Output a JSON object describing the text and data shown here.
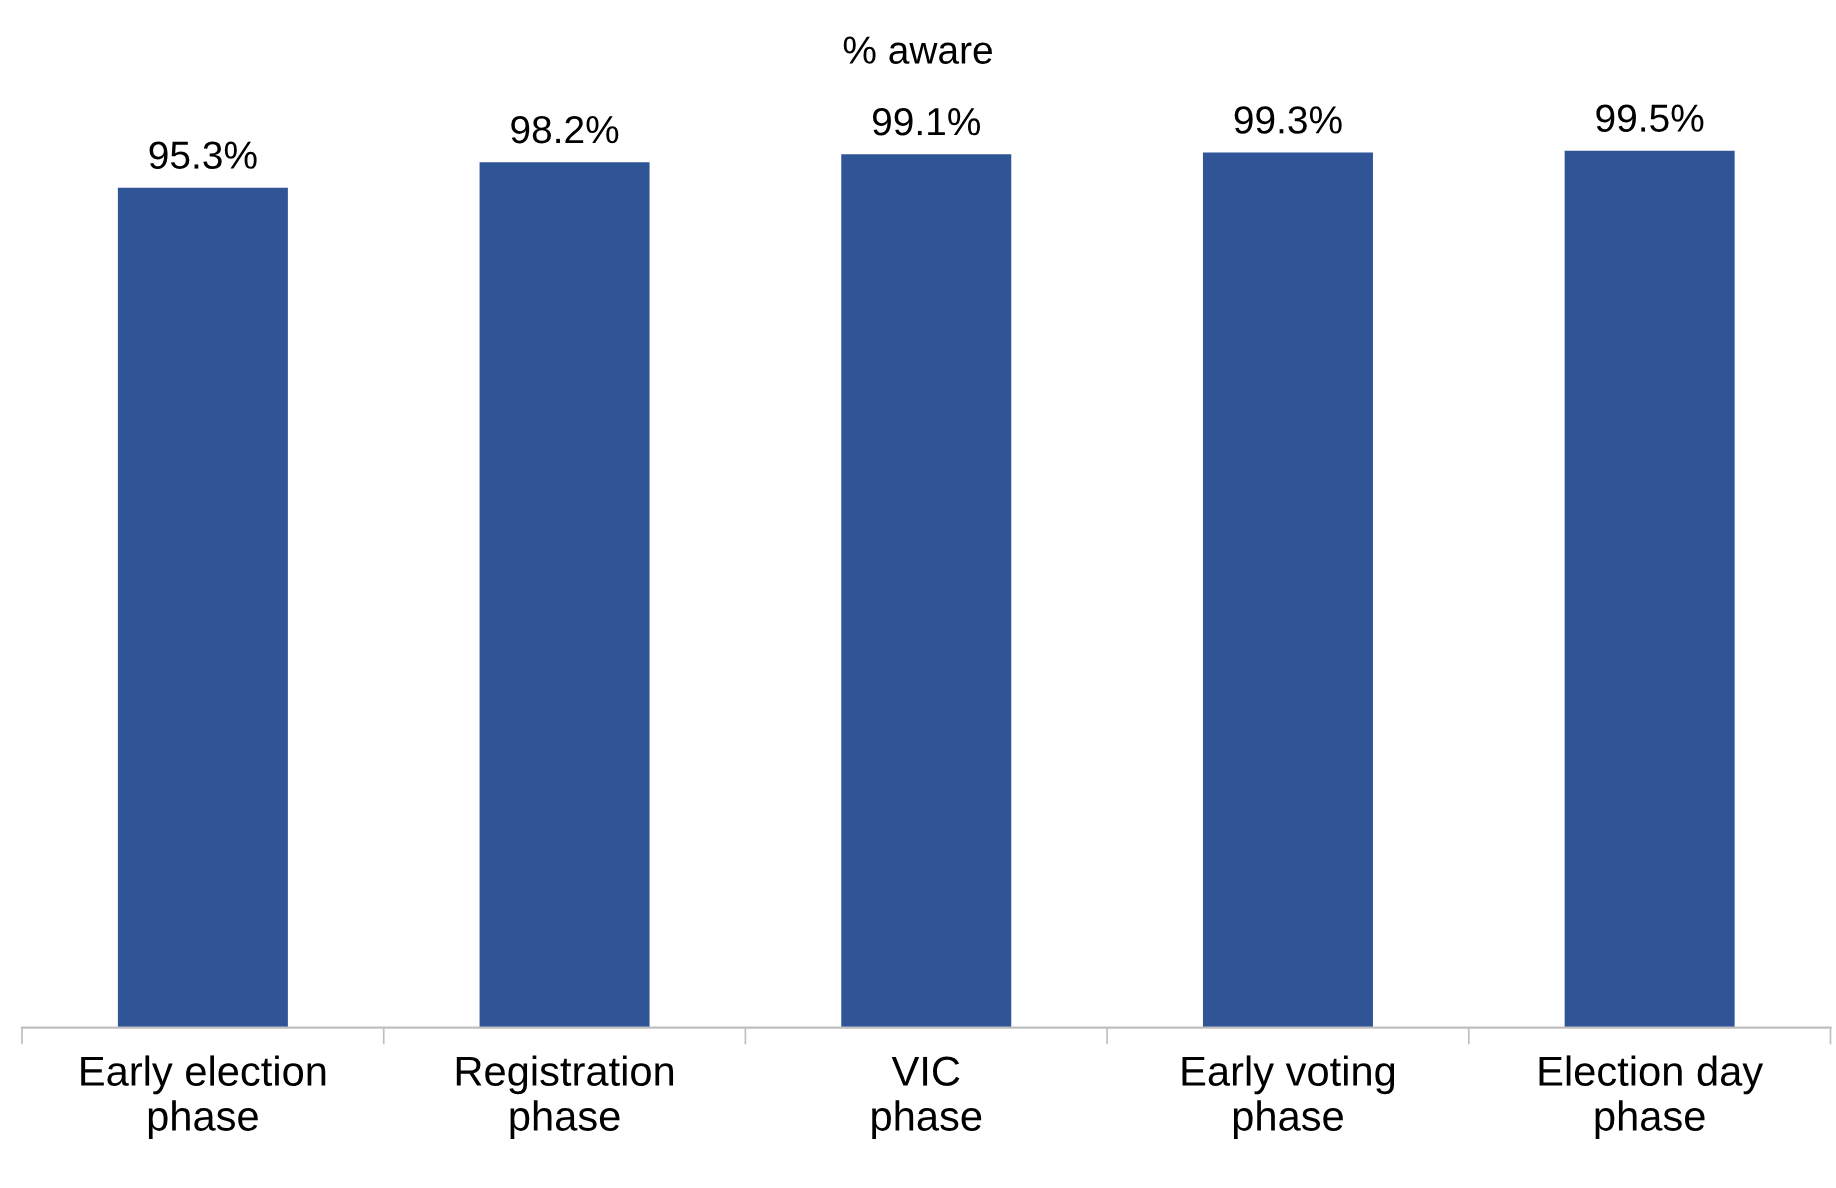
{
  "chart_data": {
    "type": "bar",
    "title": "% aware",
    "categories": [
      "Early election\nphase",
      "Registration\nphase",
      "VIC\nphase",
      "Early voting\nphase",
      "Election day\nphase"
    ],
    "values": [
      95.3,
      98.2,
      99.1,
      99.3,
      99.5
    ],
    "value_labels": [
      "95.3%",
      "98.2%",
      "99.1%",
      "99.3%",
      "99.5%"
    ],
    "color": "#2f5597",
    "tick_labels": "x",
    "grid": false,
    "legend": false
  }
}
